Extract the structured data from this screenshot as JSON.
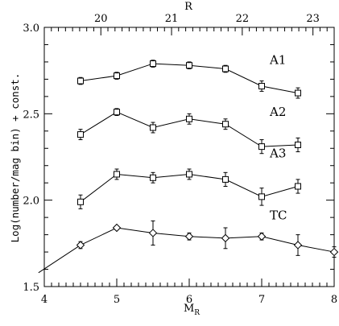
{
  "chart_data": {
    "type": "line",
    "xlabel": "M",
    "xlabel_sub": "R",
    "x2label": "R",
    "ylabel": "Log(number/mag bin) + const.",
    "xlim": [
      4,
      8
    ],
    "ylim": [
      1.5,
      3.0
    ],
    "x2lim": [
      19.2,
      23.3
    ],
    "x_ticks": [
      "4",
      "5",
      "6",
      "7",
      "8"
    ],
    "y_ticks": [
      "1.5",
      "2.0",
      "2.5",
      "3.0"
    ],
    "x2_ticks": [
      "20",
      "21",
      "22",
      "23"
    ],
    "grid": false,
    "series": [
      {
        "name": "A1",
        "marker": "square",
        "x": [
          4.5,
          5.0,
          5.5,
          6.0,
          6.5,
          7.0,
          7.5
        ],
        "y": [
          2.69,
          2.72,
          2.79,
          2.78,
          2.76,
          2.66,
          2.62
        ],
        "err": [
          0.02,
          0.02,
          0.02,
          0.02,
          0.02,
          0.03,
          0.03
        ]
      },
      {
        "name": "A2",
        "marker": "square",
        "x": [
          4.5,
          5.0,
          5.5,
          6.0,
          6.5,
          7.0,
          7.5
        ],
        "y": [
          2.38,
          2.51,
          2.42,
          2.47,
          2.44,
          2.31,
          2.32
        ],
        "err": [
          0.03,
          0.02,
          0.03,
          0.03,
          0.03,
          0.04,
          0.04
        ]
      },
      {
        "name": "A3",
        "marker": "square",
        "x": [
          4.5,
          5.0,
          5.5,
          6.0,
          6.5,
          7.0,
          7.5
        ],
        "y": [
          1.99,
          2.15,
          2.13,
          2.15,
          2.12,
          2.02,
          2.08
        ],
        "err": [
          0.04,
          0.03,
          0.03,
          0.03,
          0.04,
          0.05,
          0.04
        ]
      },
      {
        "name": "TC",
        "marker": "diamond",
        "x": [
          3.92,
          4.5,
          5.0,
          5.5,
          6.0,
          6.5,
          7.0,
          7.5,
          8.0
        ],
        "y": [
          1.58,
          1.74,
          1.84,
          1.81,
          1.79,
          1.78,
          1.79,
          1.74,
          1.7
        ],
        "err": [
          0,
          0.02,
          0.01,
          0.07,
          0.02,
          0.06,
          0.02,
          0.06,
          0.03
        ],
        "show_marker": [
          false,
          true,
          true,
          true,
          true,
          true,
          true,
          true,
          true
        ]
      }
    ]
  }
}
